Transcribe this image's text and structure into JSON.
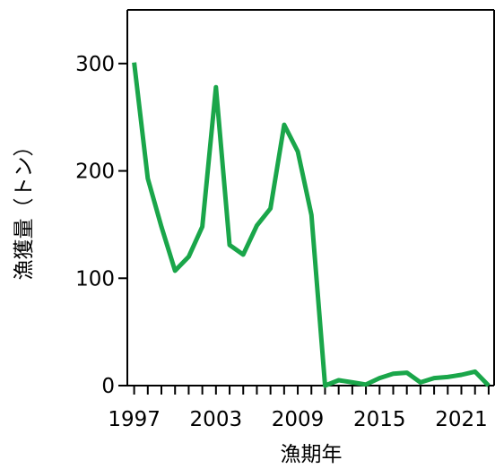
{
  "chart_data": {
    "type": "line",
    "title": "",
    "xlabel": "漁期年",
    "ylabel": "漁獲量（トン）",
    "xlim": [
      1996.5,
      2023.4
    ],
    "ylim": [
      0,
      350
    ],
    "x_ticks_major": [
      1997,
      2003,
      2009,
      2015,
      2021
    ],
    "x_tick_labels": [
      "1997",
      "2003",
      "2009",
      "2015",
      "2021"
    ],
    "y_ticks": [
      0,
      100,
      200,
      300
    ],
    "y_tick_labels": [
      "0",
      "100",
      "200",
      "300"
    ],
    "grid": false,
    "legend": "none",
    "line_color": "#1aa64a",
    "series": [
      {
        "x": [
          1997,
          1998,
          1999,
          2000,
          2001,
          2002,
          2003,
          2004,
          2005,
          2006,
          2007,
          2008,
          2009,
          2010,
          2011,
          2012,
          2013,
          2014,
          2015,
          2016,
          2017,
          2018,
          2019,
          2020,
          2021,
          2022,
          2023
        ],
        "values": [
          301,
          193,
          148,
          107,
          120,
          148,
          278,
          131,
          122,
          149,
          165,
          243,
          218,
          159,
          0,
          5,
          3,
          1,
          7,
          11,
          12,
          3,
          7,
          8,
          10,
          13,
          0
        ]
      }
    ]
  }
}
